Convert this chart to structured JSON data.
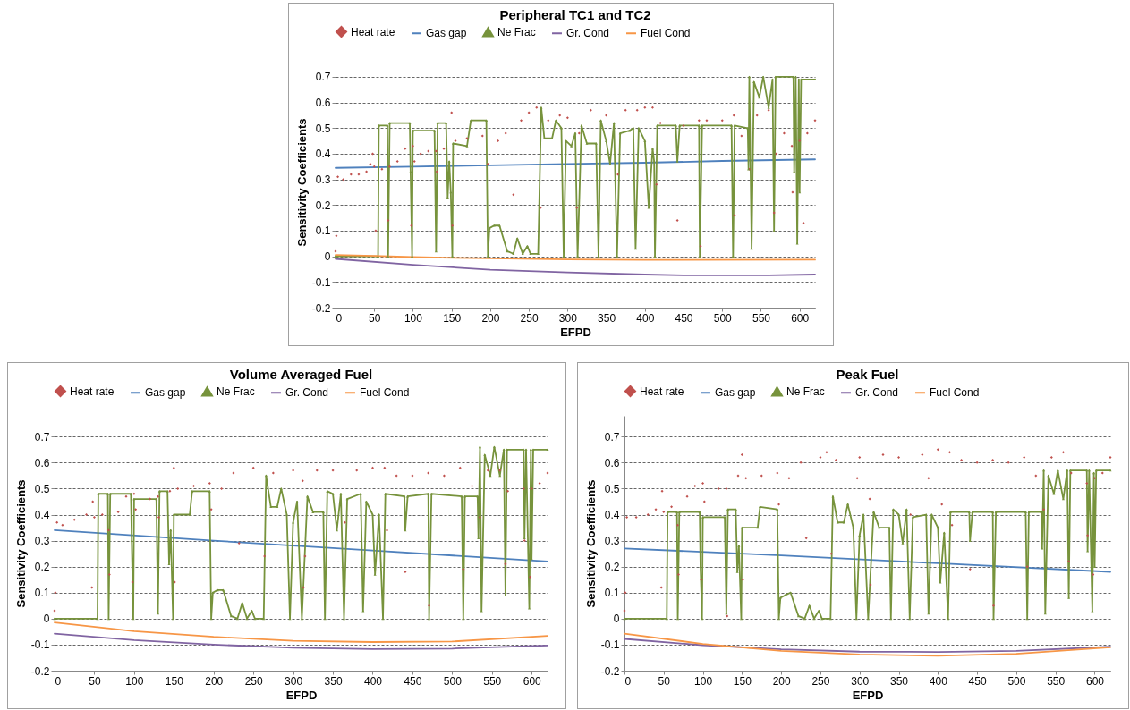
{
  "chart_data": [
    {
      "type": "line",
      "title": "Peripheral TC1 and TC2",
      "xlabel": "EFPD",
      "ylabel": "Sensitivity Coefficients",
      "xlim": [
        0,
        620
      ],
      "xticks": [
        0,
        50,
        100,
        150,
        200,
        250,
        300,
        350,
        400,
        450,
        500,
        550,
        600
      ],
      "ylim": [
        -0.2,
        0.78
      ],
      "yticks": [
        -0.2,
        -0.1,
        0,
        0.1,
        0.2,
        0.3,
        0.4,
        0.5,
        0.6,
        0.7
      ],
      "grid": "y",
      "legend": "top",
      "series": [
        {
          "name": "Heat rate",
          "type": "scatter",
          "marker": "diamond",
          "color": "#c0504d",
          "x": [
            0,
            1,
            3,
            10,
            20,
            30,
            40,
            45,
            48,
            50,
            52,
            60,
            68,
            70,
            80,
            90,
            100,
            98,
            102,
            110,
            120,
            130,
            131,
            140,
            150,
            151,
            155,
            170,
            190,
            197,
            210,
            220,
            230,
            240,
            250,
            260,
            265,
            275,
            290,
            300,
            312,
            315,
            330,
            350,
            365,
            375,
            390,
            400,
            410,
            415,
            420,
            442,
            450,
            470,
            472,
            480,
            500,
            515,
            516,
            525,
            535,
            545,
            560,
            567,
            570,
            580,
            590,
            591,
            600,
            605,
            610,
            620
          ],
          "values": [
            0.02,
            0.08,
            0.31,
            0.3,
            0.32,
            0.32,
            0.33,
            0.36,
            0.4,
            0.35,
            0.1,
            0.34,
            0.14,
            0.35,
            0.37,
            0.42,
            0.43,
            0.12,
            0.37,
            0.4,
            0.41,
            0.41,
            0.33,
            0.42,
            0.56,
            0.12,
            0.45,
            0.46,
            0.47,
            0.36,
            0.45,
            0.48,
            0.24,
            0.53,
            0.56,
            0.58,
            0.19,
            0.53,
            0.55,
            0.54,
            0.19,
            0.48,
            0.57,
            0.55,
            0.32,
            0.57,
            0.57,
            0.58,
            0.58,
            0.28,
            0.52,
            0.14,
            0.51,
            0.53,
            0.04,
            0.53,
            0.53,
            0.55,
            0.16,
            0.47,
            0.34,
            0.55,
            0.57,
            0.17,
            0.4,
            0.48,
            0.43,
            0.25,
            0.45,
            0.13,
            0.48,
            0.53
          ]
        },
        {
          "name": "Gas gap",
          "marker": "none",
          "color": "#4f81bd",
          "x": [
            0,
            100,
            200,
            300,
            400,
            500,
            620
          ],
          "values": [
            0.345,
            0.35,
            0.355,
            0.36,
            0.365,
            0.372,
            0.378
          ]
        },
        {
          "name": "Ne Frac",
          "marker": "triangle",
          "color": "#77933c",
          "x": [
            0,
            55,
            56,
            67,
            68,
            70,
            96,
            97,
            99,
            100,
            128,
            130,
            132,
            143,
            145,
            147,
            149,
            151,
            152,
            170,
            175,
            195,
            197,
            199,
            205,
            212,
            222,
            230,
            235,
            242,
            248,
            252,
            262,
            266,
            270,
            280,
            285,
            292,
            295,
            298,
            305,
            310,
            313,
            318,
            325,
            337,
            340,
            343,
            350,
            355,
            360,
            364,
            368,
            380,
            385,
            388,
            392,
            400,
            405,
            410,
            412,
            413,
            416,
            440,
            442,
            445,
            470,
            471,
            474,
            512,
            514,
            516,
            533,
            534,
            535,
            538,
            541,
            548,
            553,
            560,
            565,
            567,
            569,
            592,
            593,
            595,
            597,
            599,
            600,
            602,
            620
          ],
          "values": [
            0,
            0,
            0.51,
            0.51,
            0,
            0.52,
            0.52,
            0.33,
            0,
            0.49,
            0.49,
            0.02,
            0.52,
            0.52,
            0.23,
            0.37,
            0.25,
            0,
            0.44,
            0.43,
            0.53,
            0.53,
            0,
            0.11,
            0.12,
            0.12,
            0.02,
            0.01,
            0.07,
            0.01,
            0.04,
            0.01,
            0.01,
            0.58,
            0.46,
            0.46,
            0.53,
            0.5,
            0,
            0.45,
            0.43,
            0.48,
            0,
            0.51,
            0.44,
            0.44,
            0,
            0.53,
            0.45,
            0.36,
            0.52,
            0,
            0.48,
            0.49,
            0.5,
            0.03,
            0.5,
            0.45,
            0.19,
            0.42,
            0.37,
            0,
            0.51,
            0.51,
            0.37,
            0.51,
            0.51,
            0,
            0.51,
            0.51,
            0,
            0.51,
            0.5,
            0.34,
            0.7,
            0.03,
            0.68,
            0.62,
            0.7,
            0.58,
            0.69,
            0.1,
            0.7,
            0.7,
            0.33,
            0.7,
            0.05,
            0.69,
            0.25,
            0.69,
            0.69
          ]
        },
        {
          "name": "Gr. Cond",
          "marker": "none",
          "color": "#8064a2",
          "x": [
            0,
            100,
            200,
            300,
            400,
            450,
            560,
            620
          ],
          "values": [
            -0.01,
            -0.033,
            -0.052,
            -0.063,
            -0.071,
            -0.074,
            -0.074,
            -0.071
          ]
        },
        {
          "name": "Fuel Cond",
          "marker": "none",
          "color": "#f79646",
          "x": [
            0,
            50,
            100,
            200,
            300,
            400,
            620
          ],
          "values": [
            0.005,
            0.002,
            -0.003,
            -0.008,
            -0.012,
            -0.014,
            -0.013
          ]
        }
      ]
    },
    {
      "type": "line",
      "title": "Volume Averaged Fuel",
      "xlabel": "EFPD",
      "ylabel": "Sensitivity Coefficients",
      "xlim": [
        0,
        620
      ],
      "xticks": [
        0,
        50,
        100,
        150,
        200,
        250,
        300,
        350,
        400,
        450,
        500,
        550,
        600
      ],
      "ylim": [
        -0.2,
        0.78
      ],
      "yticks": [
        -0.2,
        -0.1,
        0,
        0.1,
        0.2,
        0.3,
        0.4,
        0.5,
        0.6,
        0.7
      ],
      "grid": "y",
      "legend": "top",
      "series": [
        {
          "name": "Heat rate",
          "type": "scatter",
          "marker": "diamond",
          "color": "#c0504d",
          "x": [
            0,
            1,
            3,
            10,
            25,
            40,
            48,
            47,
            50,
            60,
            68,
            69,
            80,
            90,
            100,
            98,
            102,
            120,
            130,
            131,
            145,
            150,
            151,
            155,
            175,
            195,
            197,
            210,
            225,
            232,
            250,
            264,
            275,
            300,
            312,
            313,
            315,
            330,
            350,
            365,
            380,
            400,
            415,
            418,
            430,
            441,
            450,
            470,
            471,
            490,
            510,
            514,
            525,
            535,
            545,
            560,
            567,
            570,
            590,
            591,
            600,
            598,
            610,
            620
          ],
          "values": [
            0.03,
            0.1,
            0.37,
            0.36,
            0.38,
            0.4,
            0.45,
            0.12,
            0.39,
            0.4,
            0.34,
            0.17,
            0.41,
            0.47,
            0.48,
            0.14,
            0.42,
            0.46,
            0.47,
            0.39,
            0.49,
            0.58,
            0.14,
            0.5,
            0.51,
            0.52,
            0.42,
            0.5,
            0.56,
            0.29,
            0.58,
            0.24,
            0.56,
            0.57,
            0.53,
            0.12,
            0.24,
            0.57,
            0.57,
            0.37,
            0.57,
            0.58,
            0.58,
            0.34,
            0.55,
            0.18,
            0.55,
            0.56,
            0.05,
            0.55,
            0.58,
            0.19,
            0.51,
            0.39,
            0.57,
            0.57,
            0.21,
            0.49,
            0.5,
            0.3,
            0.5,
            0.16,
            0.52,
            0.56
          ]
        },
        {
          "name": "Gas gap",
          "marker": "none",
          "color": "#4f81bd",
          "x": [
            0,
            200,
            400,
            620
          ],
          "values": [
            0.34,
            0.3,
            0.262,
            0.22
          ]
        },
        {
          "name": "Ne Frac",
          "marker": "triangle",
          "color": "#77933c",
          "x": [
            0,
            54,
            55,
            67,
            68,
            70,
            96,
            97,
            99,
            100,
            128,
            130,
            132,
            142,
            144,
            146,
            149,
            150,
            170,
            173,
            195,
            197,
            199,
            205,
            212,
            222,
            230,
            236,
            242,
            248,
            252,
            263,
            266,
            272,
            280,
            285,
            292,
            296,
            300,
            305,
            311,
            318,
            325,
            338,
            340,
            343,
            350,
            355,
            360,
            364,
            368,
            385,
            388,
            392,
            400,
            403,
            408,
            413,
            416,
            440,
            441,
            444,
            470,
            471,
            474,
            512,
            514,
            516,
            532,
            533,
            535,
            537,
            541,
            548,
            553,
            560,
            565,
            567,
            569,
            590,
            591,
            593,
            597,
            599,
            600,
            602,
            620
          ],
          "values": [
            0,
            0,
            0.48,
            0.48,
            0,
            0.48,
            0.48,
            0.3,
            0,
            0.46,
            0.46,
            0.02,
            0.49,
            0.49,
            0.21,
            0.34,
            0,
            0.4,
            0.4,
            0.49,
            0.49,
            0,
            0.1,
            0.11,
            0.11,
            0.01,
            0,
            0.06,
            0,
            0.03,
            0,
            0,
            0.55,
            0.43,
            0.43,
            0.5,
            0.4,
            0,
            0.37,
            0.45,
            0,
            0.47,
            0.41,
            0.41,
            0,
            0.49,
            0.48,
            0.34,
            0.48,
            0,
            0.46,
            0.48,
            0.03,
            0.45,
            0.4,
            0.17,
            0.4,
            0,
            0.48,
            0.47,
            0.34,
            0.47,
            0.48,
            0,
            0.48,
            0.47,
            0,
            0.47,
            0.47,
            0.31,
            0.66,
            0.03,
            0.63,
            0.55,
            0.66,
            0.55,
            0.65,
            0.09,
            0.65,
            0.65,
            0.31,
            0.65,
            0.04,
            0.65,
            0.23,
            0.65,
            0.65
          ]
        },
        {
          "name": "Gr. Cond",
          "marker": "none",
          "color": "#8064a2",
          "x": [
            0,
            100,
            200,
            300,
            400,
            500,
            620
          ],
          "values": [
            -0.058,
            -0.083,
            -0.1,
            -0.112,
            -0.117,
            -0.115,
            -0.103
          ]
        },
        {
          "name": "Fuel Cond",
          "marker": "none",
          "color": "#f79646",
          "x": [
            0,
            100,
            200,
            300,
            400,
            500,
            620
          ],
          "values": [
            -0.015,
            -0.048,
            -0.07,
            -0.085,
            -0.09,
            -0.088,
            -0.066
          ]
        }
      ]
    },
    {
      "type": "line",
      "title": "Peak Fuel",
      "xlabel": "EFPD",
      "ylabel": "Sensitivity Coefficients",
      "xlim": [
        0,
        620
      ],
      "xticks": [
        0,
        50,
        100,
        150,
        200,
        250,
        300,
        350,
        400,
        450,
        500,
        550,
        600
      ],
      "ylim": [
        -0.2,
        0.78
      ],
      "yticks": [
        -0.2,
        -0.1,
        0,
        0.1,
        0.2,
        0.3,
        0.4,
        0.5,
        0.6,
        0.7
      ],
      "grid": "y",
      "legend": "top",
      "series": [
        {
          "name": "Heat rate",
          "type": "scatter",
          "marker": "diamond",
          "color": "#c0504d",
          "x": [
            0,
            1,
            3,
            15,
            30,
            40,
            48,
            47,
            50,
            60,
            68,
            69,
            80,
            90,
            100,
            98,
            102,
            120,
            130,
            131,
            145,
            150,
            151,
            155,
            175,
            195,
            197,
            210,
            225,
            232,
            250,
            258,
            264,
            270,
            300,
            297,
            313,
            314,
            330,
            350,
            365,
            380,
            388,
            400,
            405,
            415,
            418,
            430,
            441,
            450,
            470,
            471,
            490,
            510,
            514,
            525,
            535,
            545,
            560,
            567,
            570,
            590,
            591,
            600,
            598,
            610,
            620
          ],
          "values": [
            0.03,
            0.1,
            0.39,
            0.39,
            0.4,
            0.42,
            0.49,
            0.12,
            0.41,
            0.43,
            0.36,
            0.17,
            0.47,
            0.51,
            0.52,
            0.15,
            0.45,
            0.5,
            0.5,
            0.01,
            0.55,
            0.63,
            0.15,
            0.54,
            0.55,
            0.56,
            0.44,
            0.54,
            0.6,
            0.31,
            0.62,
            0.64,
            0.25,
            0.61,
            0.62,
            0.54,
            0.46,
            0.13,
            0.63,
            0.62,
            0.4,
            0.63,
            0.54,
            0.65,
            0.44,
            0.64,
            0.36,
            0.61,
            0.19,
            0.6,
            0.61,
            0.05,
            0.6,
            0.62,
            0.2,
            0.55,
            0.42,
            0.62,
            0.64,
            0.22,
            0.56,
            0.52,
            0.32,
            0.54,
            0.17,
            0.56,
            0.62
          ]
        },
        {
          "name": "Gas gap",
          "marker": "none",
          "color": "#4f81bd",
          "x": [
            0,
            200,
            400,
            620
          ],
          "values": [
            0.27,
            0.243,
            0.213,
            0.18
          ]
        },
        {
          "name": "Ne Frac",
          "marker": "triangle",
          "color": "#77933c",
          "x": [
            0,
            54,
            55,
            67,
            68,
            70,
            96,
            97,
            99,
            100,
            128,
            130,
            132,
            142,
            144,
            146,
            149,
            150,
            170,
            173,
            195,
            197,
            199,
            205,
            212,
            222,
            230,
            236,
            242,
            248,
            252,
            263,
            266,
            272,
            280,
            285,
            292,
            296,
            300,
            305,
            311,
            318,
            325,
            338,
            340,
            343,
            350,
            355,
            360,
            364,
            368,
            385,
            388,
            392,
            400,
            403,
            408,
            413,
            416,
            440,
            441,
            444,
            470,
            471,
            474,
            512,
            514,
            516,
            532,
            533,
            535,
            537,
            541,
            548,
            553,
            560,
            565,
            567,
            569,
            590,
            591,
            593,
            597,
            599,
            600,
            602,
            620
          ],
          "values": [
            0,
            0,
            0.41,
            0.41,
            0,
            0.41,
            0.41,
            0.2,
            0,
            0.39,
            0.39,
            0.02,
            0.42,
            0.42,
            0.18,
            0.28,
            0,
            0.35,
            0.35,
            0.43,
            0.42,
            0,
            0.08,
            0.09,
            0.1,
            0.01,
            0,
            0.05,
            0,
            0.03,
            0,
            0,
            0.47,
            0.37,
            0.37,
            0.44,
            0.35,
            0,
            0.32,
            0.4,
            0,
            0.41,
            0.35,
            0.35,
            0,
            0.42,
            0.4,
            0.29,
            0.42,
            0,
            0.39,
            0.4,
            0.02,
            0.4,
            0.35,
            0.14,
            0.33,
            0,
            0.41,
            0.41,
            0.3,
            0.41,
            0.41,
            0,
            0.41,
            0.41,
            0,
            0.41,
            0.41,
            0.27,
            0.57,
            0.02,
            0.55,
            0.48,
            0.57,
            0.46,
            0.57,
            0.08,
            0.57,
            0.57,
            0.26,
            0.57,
            0.03,
            0.56,
            0.2,
            0.57,
            0.57
          ]
        },
        {
          "name": "Gr. Cond",
          "marker": "none",
          "color": "#8064a2",
          "x": [
            0,
            100,
            200,
            300,
            400,
            500,
            620
          ],
          "values": [
            -0.078,
            -0.102,
            -0.118,
            -0.127,
            -0.128,
            -0.124,
            -0.108
          ]
        },
        {
          "name": "Fuel Cond",
          "marker": "none",
          "color": "#f79646",
          "x": [
            0,
            100,
            200,
            300,
            400,
            500,
            620
          ],
          "values": [
            -0.058,
            -0.097,
            -0.124,
            -0.138,
            -0.143,
            -0.135,
            -0.11
          ]
        }
      ]
    }
  ]
}
